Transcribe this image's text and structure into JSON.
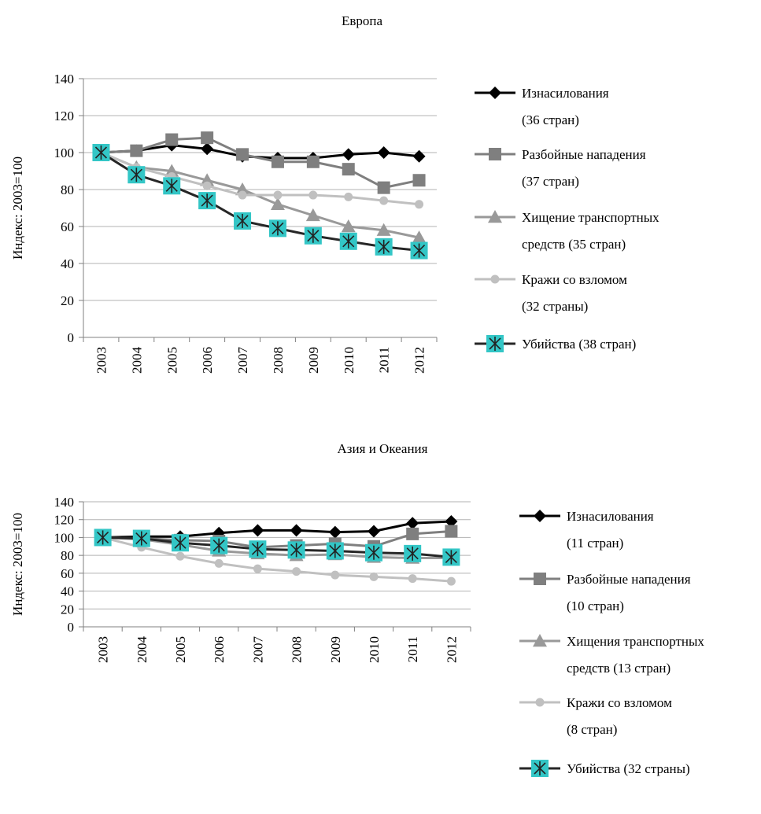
{
  "chart_data": [
    {
      "type": "line",
      "title": "Европа",
      "ylabel": "Индекс: 2003=100",
      "xlabel": "",
      "ylim": [
        0,
        140
      ],
      "yticks": [
        0,
        20,
        40,
        60,
        80,
        100,
        120,
        140
      ],
      "grid": true,
      "legend_position": "right",
      "x": [
        "2003",
        "2004",
        "2005",
        "2006",
        "2007",
        "2008",
        "2009",
        "2010",
        "2011",
        "2012"
      ],
      "series": [
        {
          "name": "Изнасилования",
          "legend_lines": [
            "Изнасилования",
            "(36 стран)"
          ],
          "marker": "diamond",
          "color": "#000000",
          "values": [
            100,
            101,
            104,
            102,
            98,
            97,
            97,
            99,
            100,
            98
          ]
        },
        {
          "name": "Разбойные нападения",
          "legend_lines": [
            "Разбойные нападения",
            "(37 стран)"
          ],
          "marker": "square",
          "color": "#7f7f7f",
          "values": [
            100,
            101,
            107,
            108,
            99,
            95,
            95,
            91,
            81,
            85
          ]
        },
        {
          "name": "Хищение транспортных средств",
          "legend_lines": [
            "Хищение транспортных",
            "средств (35 стран)"
          ],
          "marker": "triangle",
          "color": "#999999",
          "values": [
            100,
            92,
            90,
            85,
            80,
            72,
            66,
            60,
            58,
            54
          ]
        },
        {
          "name": "Кражи со взломом",
          "legend_lines": [
            "Кражи со взломом",
            "(32 страны)"
          ],
          "marker": "circle",
          "color": "#c0c0c0",
          "values": [
            100,
            92,
            87,
            82,
            77,
            77,
            77,
            76,
            74,
            72
          ]
        },
        {
          "name": "Убийства",
          "legend_lines": [
            "Убийства (38 стран)"
          ],
          "marker": "asterisk-box",
          "color": "#262626",
          "marker_fill": "#33c6c6",
          "values": [
            100,
            88,
            82,
            74,
            63,
            59,
            55,
            52,
            49,
            47
          ]
        }
      ]
    },
    {
      "type": "line",
      "title": "Азия и Океания",
      "ylabel": "Индекс: 2003=100",
      "xlabel": "",
      "ylim": [
        0,
        140
      ],
      "yticks": [
        0,
        20,
        40,
        60,
        80,
        100,
        120,
        140
      ],
      "grid": true,
      "legend_position": "right",
      "x": [
        "2003",
        "2004",
        "2005",
        "2006",
        "2007",
        "2008",
        "2009",
        "2010",
        "2011",
        "2012"
      ],
      "series": [
        {
          "name": "Изнасилования",
          "legend_lines": [
            "Изнасилования",
            "(11 стран)"
          ],
          "marker": "diamond",
          "color": "#000000",
          "values": [
            100,
            101,
            101,
            105,
            108,
            108,
            106,
            107,
            116,
            118
          ]
        },
        {
          "name": "Разбойные нападения",
          "legend_lines": [
            "Разбойные нападения",
            "(10 стран)"
          ],
          "marker": "square",
          "color": "#7f7f7f",
          "values": [
            100,
            99,
            97,
            96,
            89,
            91,
            93,
            90,
            104,
            107
          ]
        },
        {
          "name": "Хищения транспортных средств",
          "legend_lines": [
            "Хищения транспортных",
            "средств (13 стран)"
          ],
          "marker": "triangle",
          "color": "#999999",
          "values": [
            100,
            98,
            92,
            85,
            82,
            80,
            81,
            78,
            77,
            77
          ]
        },
        {
          "name": "Кражи со взломом",
          "legend_lines": [
            "Кражи со взломом",
            "(8 стран)"
          ],
          "marker": "circle",
          "color": "#c0c0c0",
          "values": [
            100,
            89,
            79,
            71,
            65,
            62,
            58,
            56,
            54,
            51
          ]
        },
        {
          "name": "Убийства",
          "legend_lines": [
            "Убийства (32 страны)"
          ],
          "marker": "asterisk-box",
          "color": "#262626",
          "marker_fill": "#33c6c6",
          "values": [
            100,
            99,
            94,
            91,
            87,
            86,
            85,
            83,
            82,
            78
          ]
        }
      ]
    }
  ]
}
